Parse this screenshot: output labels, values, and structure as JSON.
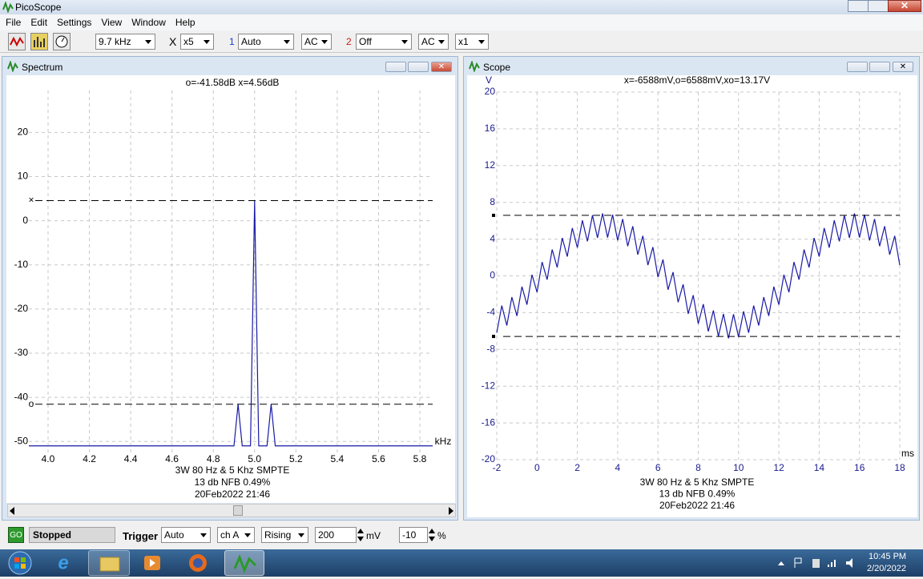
{
  "window": {
    "title": "PicoScope"
  },
  "menu": [
    "File",
    "Edit",
    "Settings",
    "View",
    "Window",
    "Help"
  ],
  "toolbar": {
    "timebase": "9.7 kHz",
    "zoom_label": "X",
    "zoom": "x5",
    "ch1_label": "1",
    "ch1_range": "Auto",
    "ch1_coupling": "AC",
    "ch2_label": "2",
    "ch2_range": "Off",
    "ch2_coupling": "AC",
    "ch2_probe": "x1"
  },
  "status": {
    "go": "GO",
    "state": "Stopped",
    "trigger_label": "Trigger",
    "trigger_mode": "Auto",
    "trigger_channel": "ch A",
    "trigger_edge": "Rising",
    "trigger_level": "200",
    "level_unit": "mV",
    "trigger_delay": "-10",
    "delay_unit": "%"
  },
  "taskbar": {
    "time": "10:45 PM",
    "date": "2/20/2022"
  },
  "chart_data": [
    {
      "type": "line",
      "title": "Spectrum",
      "readout": "o=-41.58dB  x=4.56dB",
      "x_label": "kHz",
      "caption": [
        "3W 80 Hz & 5 Khz SMPTE",
        "13 db NFB 0.49%",
        "20Feb2022  21:46"
      ],
      "x": [
        3.907,
        4.9,
        4.92,
        4.94,
        4.98,
        5.0,
        5.02,
        5.06,
        5.08,
        5.1,
        5.862
      ],
      "series": [
        {
          "color": "#1a1aa6",
          "values": [
            -51,
            -51,
            -41.58,
            -51,
            -51,
            4.56,
            -51,
            -51,
            -41.58,
            -51,
            -51
          ]
        }
      ],
      "xlim": [
        3.907,
        5.862
      ],
      "xticks": [
        {
          "value": 4,
          "label": "4.0"
        },
        4.2,
        4.4,
        4.6,
        4.8,
        {
          "value": 5,
          "label": "5.0"
        },
        5.2,
        5.4,
        5.6,
        5.8
      ],
      "ylim": [
        -52.5,
        29.5
      ],
      "yticks": [
        20,
        10,
        0,
        -10,
        -20,
        -30,
        -40,
        -50
      ],
      "grid": true,
      "axis_color": "#000000",
      "cursors": [
        {
          "label": "×",
          "value": 4.56
        },
        {
          "label": "o",
          "value": -41.58
        }
      ]
    },
    {
      "type": "line",
      "title": "Scope",
      "readout": "x=-6588mV,o=6588mV,xo=13.17V",
      "y_label": "V",
      "x_label": "ms",
      "caption": [
        "3W 80 Hz & 5 Khz SMPTE",
        "13 db NFB 0.49%",
        "20Feb2022  21:46"
      ],
      "x": [
        -2,
        -1.75,
        -1.5,
        -1.25,
        -1,
        -0.75,
        -0.5,
        -0.25,
        0,
        0.25,
        0.5,
        0.75,
        1,
        1.25,
        1.5,
        1.75,
        2,
        2.25,
        2.5,
        2.75,
        3,
        3.25,
        3.5,
        3.75,
        4,
        4.25,
        4.5,
        4.75,
        5,
        5.25,
        5.5,
        5.75,
        6,
        6.25,
        6.5,
        6.75,
        7,
        7.25,
        7.5,
        7.75,
        8,
        8.25,
        8.5,
        8.75,
        9,
        9.25,
        9.5,
        9.75,
        10,
        10.25,
        10.5,
        10.75,
        11,
        11.25,
        11.5,
        11.75,
        12,
        12.25,
        12.5,
        12.75,
        13,
        13.25,
        13.5,
        13.75,
        14,
        14.25,
        14.5,
        14.75,
        15,
        15.25,
        15.5,
        15.75,
        16,
        16.25,
        16.5,
        16.75,
        17,
        17.25,
        17.5,
        17.75,
        18
      ],
      "series": [
        {
          "color": "#1a1aa6",
          "values": [
            -6.19,
            -3.23,
            -5.4,
            -2.31,
            -4.36,
            -1.17,
            -3.13,
            0.13,
            -1.78,
            1.51,
            -0.41,
            2.87,
            0.92,
            4.13,
            2.1,
            5.21,
            3.07,
            6.05,
            3.76,
            6.59,
            4.14,
            6.8,
            4.17,
            6.66,
            3.86,
            6.19,
            3.23,
            5.4,
            2.31,
            4.36,
            1.17,
            3.13,
            -0.13,
            1.78,
            -1.51,
            0.41,
            -2.87,
            -0.92,
            -4.13,
            -2.1,
            -5.21,
            -3.07,
            -6.05,
            -3.76,
            -6.59,
            -4.14,
            -6.8,
            -4.17,
            -6.66,
            -3.86,
            -6.19,
            -3.23,
            -5.4,
            -2.31,
            -4.36,
            -1.17,
            -3.13,
            0.13,
            -1.78,
            1.51,
            -0.41,
            2.87,
            0.92,
            4.13,
            2.1,
            5.21,
            3.07,
            6.05,
            3.76,
            6.59,
            4.14,
            6.8,
            4.17,
            6.66,
            3.86,
            6.19,
            3.23,
            5.4,
            2.31,
            4.36,
            1.17
          ]
        }
      ],
      "xlim": [
        -2,
        18
      ],
      "xticks": [
        -2,
        0,
        2,
        4,
        6,
        8,
        10,
        12,
        14,
        16,
        18
      ],
      "ylim": [
        -20,
        20
      ],
      "yticks": [
        20,
        16,
        12,
        8,
        4,
        0,
        -4,
        -8,
        -12,
        -16,
        -20
      ],
      "grid": true,
      "axis_color": "#1a1a8c",
      "cursors": [
        {
          "value": 6.588
        },
        {
          "value": -6.588
        }
      ]
    }
  ]
}
